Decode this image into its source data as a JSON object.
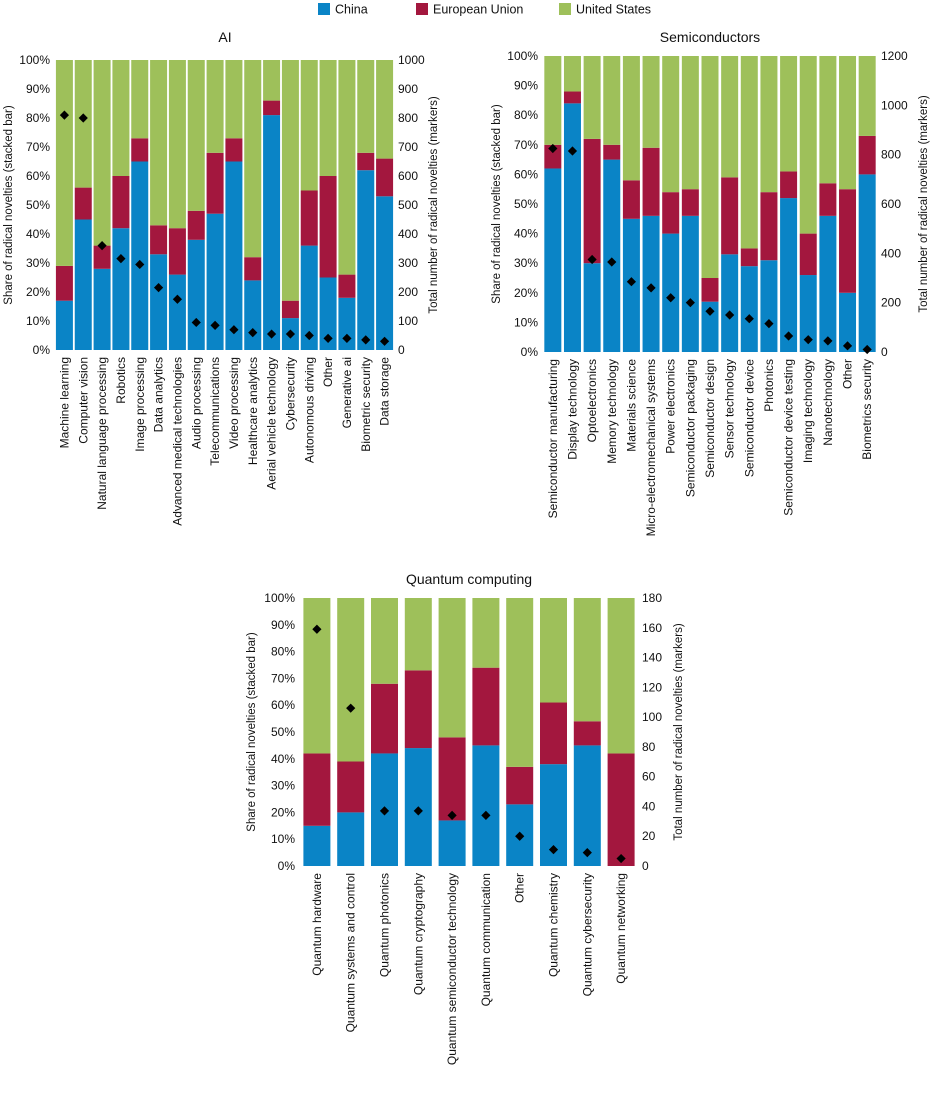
{
  "legend": {
    "items": [
      {
        "label": "China",
        "color": "#0a84c6"
      },
      {
        "label": "European Union",
        "color": "#a3173e"
      },
      {
        "label": "United States",
        "color": "#9ec05a"
      }
    ]
  },
  "chart_data": [
    {
      "type": "bar",
      "title": "AI",
      "ylabel": "Share of radical novelties (stacked bar)",
      "y2label": "Total number of radical novelties (markers)",
      "ylim": [
        0,
        100
      ],
      "y2lim": [
        0,
        1000
      ],
      "yticks": [
        "0%",
        "10%",
        "20%",
        "30%",
        "40%",
        "50%",
        "60%",
        "70%",
        "80%",
        "90%",
        "100%"
      ],
      "y2ticks": [
        "0",
        "100",
        "200",
        "300",
        "400",
        "500",
        "600",
        "700",
        "800",
        "900",
        "1000"
      ],
      "categories": [
        "Machine learning",
        "Computer vision",
        "Natural language processing",
        "Robotics",
        "Image processing",
        "Data analytics",
        "Advanced medical technologies",
        "Audio processing",
        "Telecommunications",
        "Video processing",
        "Healthcare analytics",
        "Aerial vehicle technology",
        "Cybersecurity",
        "Autonomous driving",
        "Other",
        "Generative ai",
        "Biometric security",
        "Data storage"
      ],
      "series": [
        {
          "name": "China",
          "values": [
            17,
            45,
            28,
            42,
            65,
            33,
            26,
            38,
            47,
            65,
            24,
            81,
            11,
            36,
            25,
            18,
            62,
            53
          ]
        },
        {
          "name": "European Union",
          "values": [
            12,
            11,
            8,
            18,
            8,
            10,
            16,
            10,
            21,
            8,
            8,
            5,
            6,
            19,
            35,
            8,
            6,
            13
          ]
        },
        {
          "name": "United States",
          "values": [
            71,
            44,
            64,
            40,
            27,
            57,
            58,
            52,
            32,
            27,
            68,
            14,
            83,
            45,
            40,
            74,
            32,
            34
          ]
        }
      ],
      "markers": {
        "name": "Total number of radical novelties",
        "values": [
          810,
          800,
          360,
          315,
          295,
          215,
          175,
          95,
          85,
          70,
          60,
          55,
          55,
          50,
          40,
          40,
          35,
          30
        ]
      }
    },
    {
      "type": "bar",
      "title": "Semiconductors",
      "ylabel": "Share of radical novelties (stacked bar)",
      "y2label": "Total number of radical novelties (markers)",
      "ylim": [
        0,
        100
      ],
      "y2lim": [
        0,
        1200
      ],
      "yticks": [
        "0%",
        "10%",
        "20%",
        "30%",
        "40%",
        "50%",
        "60%",
        "70%",
        "80%",
        "90%",
        "100%"
      ],
      "y2ticks": [
        "0",
        "200",
        "400",
        "600",
        "800",
        "1000",
        "1200"
      ],
      "categories": [
        "Semiconductor manufacturing",
        "Display technology",
        "Optoelectronics",
        "Memory technology",
        "Materials science",
        "Micro-electromechanical systems",
        "Power electronics",
        "Semiconductor packaging",
        "Semiconductor design",
        "Sensor technology",
        "Semiconductor device",
        "Photonics",
        "Semiconductor device testing",
        "Imaging technology",
        "Nanotechnology",
        "Other",
        "Biometrics security"
      ],
      "series": [
        {
          "name": "China",
          "values": [
            62,
            84,
            30,
            65,
            45,
            46,
            40,
            46,
            17,
            33,
            29,
            31,
            52,
            26,
            46,
            20,
            60
          ]
        },
        {
          "name": "European Union",
          "values": [
            8,
            4,
            42,
            5,
            13,
            23,
            14,
            9,
            8,
            26,
            6,
            23,
            9,
            14,
            11,
            35,
            13
          ]
        },
        {
          "name": "United States",
          "values": [
            30,
            12,
            28,
            30,
            42,
            31,
            46,
            45,
            75,
            41,
            65,
            46,
            39,
            60,
            43,
            45,
            27
          ]
        }
      ],
      "markers": {
        "name": "Total number of radical novelties",
        "values": [
          825,
          815,
          375,
          365,
          285,
          260,
          220,
          200,
          165,
          150,
          135,
          115,
          65,
          50,
          45,
          25,
          10
        ]
      }
    },
    {
      "type": "bar",
      "title": "Quantum computing",
      "ylabel": "Share of radical novelties (stacked bar)",
      "y2label": "Total number of radical novelties (markers)",
      "ylim": [
        0,
        100
      ],
      "y2lim": [
        0,
        180
      ],
      "yticks": [
        "0%",
        "10%",
        "20%",
        "30%",
        "40%",
        "50%",
        "60%",
        "70%",
        "80%",
        "90%",
        "100%"
      ],
      "y2ticks": [
        "0",
        "20",
        "40",
        "60",
        "80",
        "100",
        "120",
        "140",
        "160",
        "180"
      ],
      "categories": [
        "Quantum hardware",
        "Quantum systems and control",
        "Quantum photonics",
        "Quantum cryptography",
        "Quantum semiconductor technology",
        "Quantum communication",
        "Other",
        "Quantum chemistry",
        "Quantum cybersecurity",
        "Quantum networking"
      ],
      "series": [
        {
          "name": "China",
          "values": [
            15,
            20,
            42,
            44,
            17,
            45,
            23,
            38,
            45,
            0
          ]
        },
        {
          "name": "European Union",
          "values": [
            27,
            19,
            26,
            29,
            31,
            29,
            14,
            23,
            9,
            42
          ]
        },
        {
          "name": "United States",
          "values": [
            58,
            61,
            32,
            27,
            52,
            26,
            63,
            39,
            46,
            58
          ]
        }
      ],
      "markers": {
        "name": "Total number of radical novelties",
        "values": [
          159,
          106,
          37,
          37,
          34,
          34,
          20,
          11,
          9,
          5
        ]
      }
    }
  ]
}
